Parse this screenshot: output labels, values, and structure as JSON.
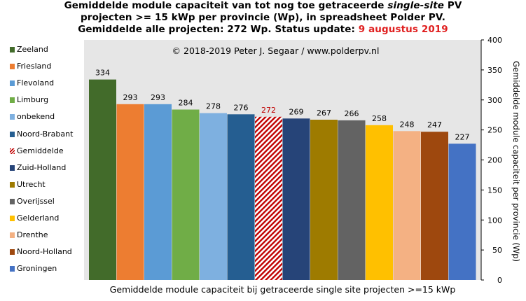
{
  "header": {
    "title_line1_a": "Gemiddelde module capaciteit van tot nog toe getraceerde ",
    "title_line1_b": "single-site",
    "title_line1_c": " PV",
    "title_line2": "projecten >= 15 kWp per provincie (Wp), in spreadsheet Polder PV.",
    "title_line3_a": "Gemiddelde alle projecten: 272 Wp. Status update: ",
    "title_line3_date": "9 augustus 2019"
  },
  "chart_data": {
    "type": "bar",
    "copyright": "© 2018-2019 Peter J. Segaar / www.polderpv.nl",
    "xlabel": "Gemiddelde module capaciteit bij getraceerde single site projecten >=15 kWp",
    "ylabel": "Gemiddelde module capaciteit per provincie (Wp)",
    "ylim": [
      0,
      400
    ],
    "yticks": [
      0,
      50,
      100,
      150,
      200,
      250,
      300,
      350,
      400
    ],
    "yaxis_position": "right",
    "legend_position": "left",
    "grid": false,
    "categories": [
      "Zeeland",
      "Friesland",
      "Flevoland",
      "Limburg",
      "onbekend",
      "Noord-Brabant",
      "Gemiddelde",
      "Zuid-Holland",
      "Utrecht",
      "Overijssel",
      "Gelderland",
      "Drenthe",
      "Noord-Holland",
      "Groningen"
    ],
    "values": [
      334,
      293,
      293,
      284,
      278,
      276,
      272,
      269,
      267,
      266,
      258,
      248,
      247,
      227
    ],
    "colors": [
      "#426b2a",
      "#ed7d31",
      "#5b9bd5",
      "#70ad47",
      "#7eb0e0",
      "#255e91",
      "#c00000",
      "#264478",
      "#9e7b00",
      "#636363",
      "#ffc000",
      "#f4b183",
      "#9e480e",
      "#4472c4"
    ],
    "hatched": [
      false,
      false,
      false,
      false,
      false,
      false,
      true,
      false,
      false,
      false,
      false,
      false,
      false,
      false
    ],
    "label_colors": [
      "#000000",
      "#000000",
      "#000000",
      "#000000",
      "#000000",
      "#000000",
      "#c00000",
      "#000000",
      "#000000",
      "#000000",
      "#000000",
      "#000000",
      "#000000",
      "#000000"
    ],
    "plot_background": "#e6e6e6"
  }
}
